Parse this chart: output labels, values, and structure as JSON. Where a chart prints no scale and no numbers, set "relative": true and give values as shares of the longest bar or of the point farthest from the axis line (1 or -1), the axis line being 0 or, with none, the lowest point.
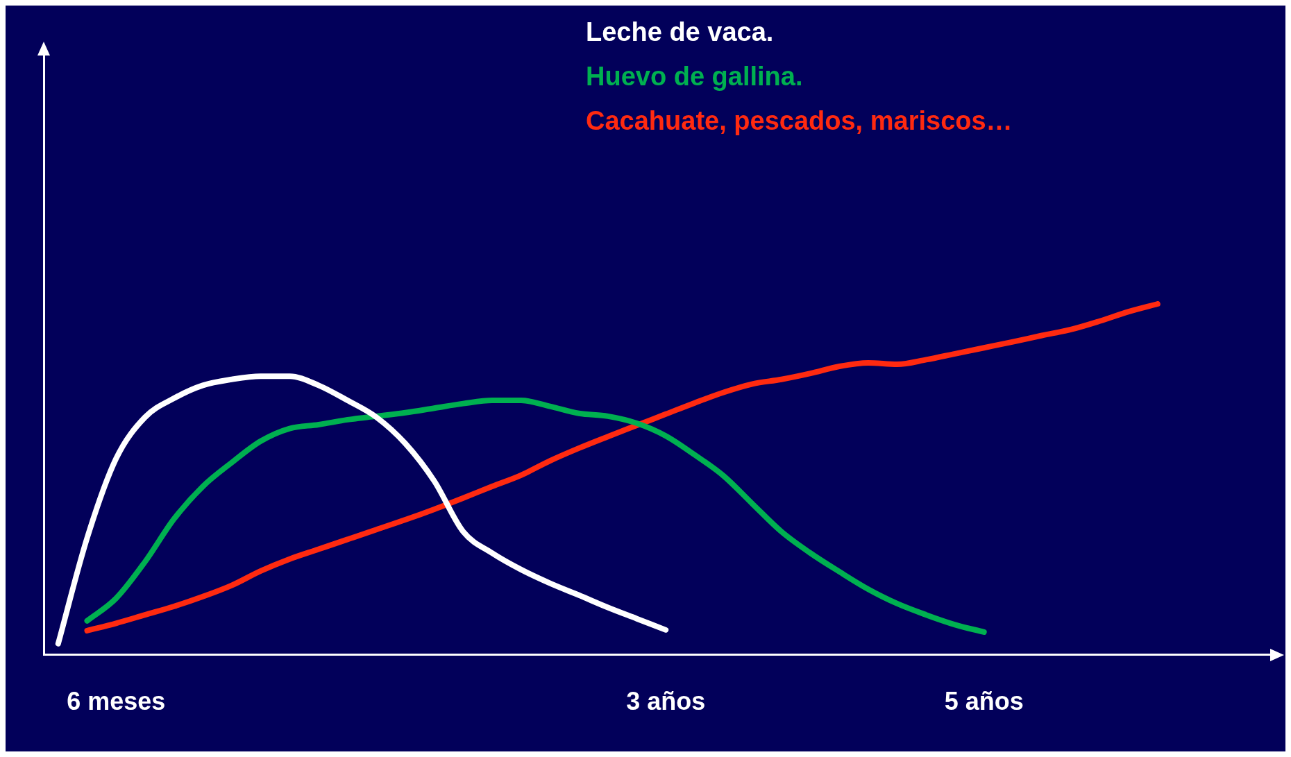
{
  "chart_data": {
    "type": "line",
    "relative": true,
    "legend": "top",
    "grid": false,
    "marker": "none",
    "line_style": "solid",
    "categories": [
      null,
      null,
      "6 meses",
      null,
      null,
      null,
      null,
      null,
      null,
      null,
      null,
      null,
      null,
      null,
      null,
      null,
      null,
      null,
      null,
      null,
      null,
      "3 años",
      null,
      null,
      null,
      null,
      null,
      null,
      null,
      null,
      null,
      null,
      "5 años",
      null,
      null,
      null,
      null,
      null,
      null,
      null,
      null
    ],
    "series": [
      {
        "name": "Leche de vaca.",
        "color": "#ffffff",
        "values": [
          0.032,
          0.333,
          0.559,
          0.677,
          0.731,
          0.768,
          0.785,
          0.794,
          0.794,
          0.768,
          0.725,
          0.677,
          0.602,
          0.495,
          0.351,
          0.29,
          0.243,
          0.204,
          0.17,
          0.135,
          0.103,
          0.071,
          null,
          null,
          null,
          null,
          null,
          null,
          null,
          null,
          null,
          null,
          null,
          null,
          null,
          null,
          null,
          null,
          null,
          null,
          null
        ]
      },
      {
        "name": "Huevo de gallina.",
        "color": "#00b050",
        "values": [
          null,
          0.097,
          0.161,
          0.265,
          0.387,
          0.48,
          0.548,
          0.609,
          0.645,
          0.656,
          0.67,
          0.68,
          0.69,
          0.703,
          0.716,
          0.725,
          0.725,
          0.708,
          0.688,
          0.68,
          0.66,
          0.624,
          0.57,
          0.51,
          0.43,
          0.351,
          0.29,
          0.237,
          0.187,
          0.146,
          0.114,
          0.086,
          0.065,
          null,
          null,
          null,
          null,
          null,
          null,
          null,
          null
        ]
      },
      {
        "name": "Cacahuate, pescados, mariscos…",
        "color": "#ff2a10",
        "values": [
          null,
          0.069,
          0.09,
          0.114,
          0.138,
          0.166,
          0.198,
          0.239,
          0.273,
          0.301,
          0.329,
          0.357,
          0.385,
          0.415,
          0.447,
          0.48,
          0.512,
          0.553,
          0.589,
          0.622,
          0.654,
          0.686,
          0.718,
          0.748,
          0.772,
          0.785,
          0.802,
          0.822,
          0.832,
          0.828,
          0.841,
          0.858,
          0.875,
          0.892,
          0.91,
          0.927,
          0.951,
          0.978,
          1,
          null,
          null
        ]
      }
    ]
  }
}
